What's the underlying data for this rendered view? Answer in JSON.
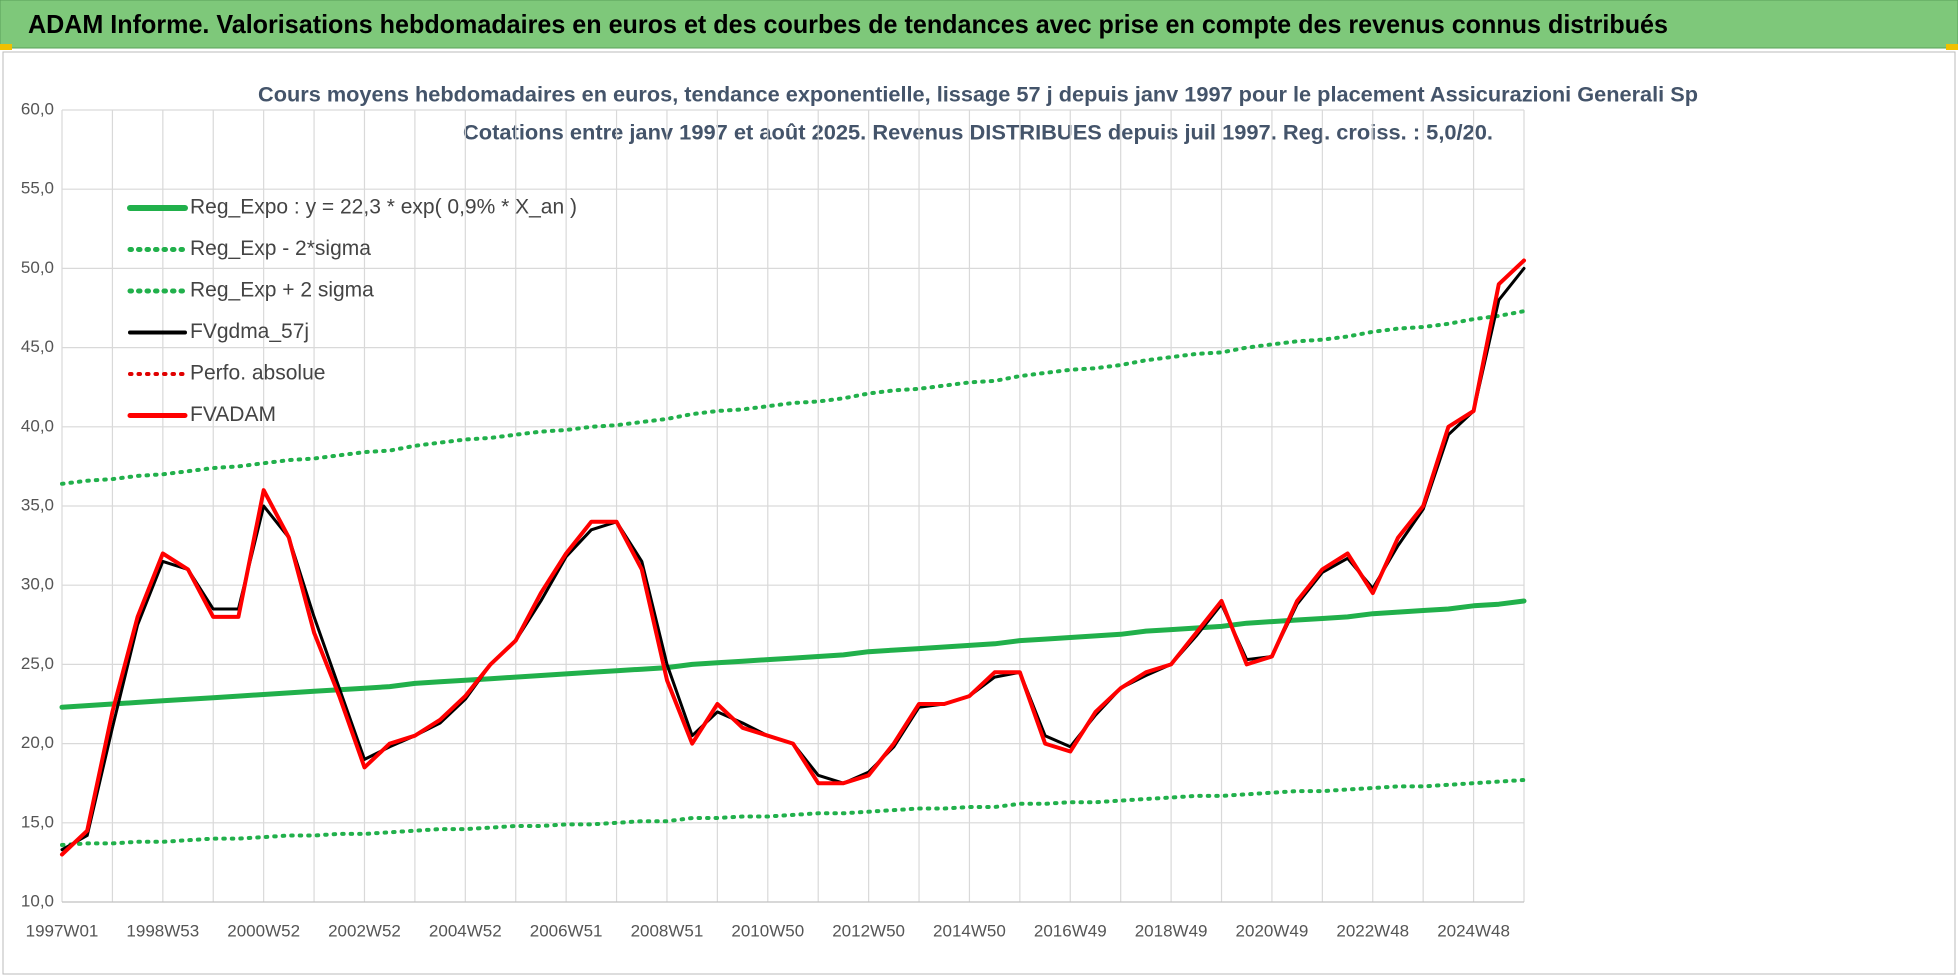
{
  "header": {
    "title": "ADAM Informe. Valorisations hebdomadaires en euros et des courbes de tendances avec prise en compte des revenus connus distribués"
  },
  "chart_data": {
    "type": "line",
    "title": "Cours moyens hebdomadaires en euros, tendance exponentielle, lissage 57 j depuis janv 1997 pour le placement Assicurazioni Generali Sp",
    "subtitle": "Cotations entre janv 1997 et août 2025. Revenus DISTRIBUES depuis juil 1997. Reg. croiss. : 5,0/20.",
    "categories": [
      "1997W01",
      null,
      null,
      null,
      "1998W53",
      null,
      null,
      null,
      "2000W52",
      null,
      null,
      null,
      "2002W52",
      null,
      null,
      null,
      "2004W52",
      null,
      null,
      null,
      "2006W51",
      null,
      null,
      null,
      "2008W51",
      null,
      null,
      null,
      "2010W50",
      null,
      null,
      null,
      "2012W50",
      null,
      null,
      null,
      "2014W50",
      null,
      null,
      null,
      "2016W49",
      null,
      null,
      null,
      "2018W49",
      null,
      null,
      null,
      "2020W49",
      null,
      null,
      null,
      "2022W48",
      null,
      null,
      null,
      "2024W48",
      null,
      null
    ],
    "ylim": [
      10,
      60
    ],
    "yticks": [
      {
        "value": 10,
        "label": "10,0"
      },
      {
        "value": 15,
        "label": "15,0"
      },
      {
        "value": 20,
        "label": "20,0"
      },
      {
        "value": 25,
        "label": "25,0"
      },
      {
        "value": 30,
        "label": "30,0"
      },
      {
        "value": 35,
        "label": "35,0"
      },
      {
        "value": 40,
        "label": "40,0"
      },
      {
        "value": 45,
        "label": "45,0"
      },
      {
        "value": 50,
        "label": "50,0"
      },
      {
        "value": 55,
        "label": "55,0"
      },
      {
        "value": 60,
        "label": "60,0"
      }
    ],
    "grid": true,
    "legend": "top-left",
    "series": [
      {
        "name": "Reg_Expo : y = 22,3 * exp( 0,9% *  X_an )",
        "color": "#21b04b",
        "style": "solid",
        "width": 5,
        "values": [
          22.3,
          22.4,
          22.5,
          22.6,
          22.7,
          22.8,
          22.9,
          23.0,
          23.1,
          23.2,
          23.3,
          23.4,
          23.5,
          23.6,
          23.8,
          23.9,
          24.0,
          24.1,
          24.2,
          24.3,
          24.4,
          24.5,
          24.6,
          24.7,
          24.8,
          25.0,
          25.1,
          25.2,
          25.3,
          25.4,
          25.5,
          25.6,
          25.8,
          25.9,
          26.0,
          26.1,
          26.2,
          26.3,
          26.5,
          26.6,
          26.7,
          26.8,
          26.9,
          27.1,
          27.2,
          27.3,
          27.4,
          27.6,
          27.7,
          27.8,
          27.9,
          28.0,
          28.2,
          28.3,
          28.4,
          28.5,
          28.7,
          28.8,
          29.0
        ]
      },
      {
        "name": "Reg_Exp - 2*sigma",
        "color": "#21b04b",
        "style": "dotted",
        "width": 4,
        "values": [
          13.6,
          13.7,
          13.7,
          13.8,
          13.8,
          13.9,
          14.0,
          14.0,
          14.1,
          14.2,
          14.2,
          14.3,
          14.3,
          14.4,
          14.5,
          14.6,
          14.6,
          14.7,
          14.8,
          14.8,
          14.9,
          14.9,
          15.0,
          15.1,
          15.1,
          15.3,
          15.3,
          15.4,
          15.4,
          15.5,
          15.6,
          15.6,
          15.7,
          15.8,
          15.9,
          15.9,
          16.0,
          16.0,
          16.2,
          16.2,
          16.3,
          16.3,
          16.4,
          16.5,
          16.6,
          16.7,
          16.7,
          16.8,
          16.9,
          17.0,
          17.0,
          17.1,
          17.2,
          17.3,
          17.3,
          17.4,
          17.5,
          17.6,
          17.7
        ]
      },
      {
        "name": "Reg_Exp + 2 sigma",
        "color": "#21b04b",
        "style": "dotted",
        "width": 4,
        "values": [
          36.4,
          36.6,
          36.7,
          36.9,
          37.0,
          37.2,
          37.4,
          37.5,
          37.7,
          37.9,
          38.0,
          38.2,
          38.4,
          38.5,
          38.8,
          39.0,
          39.2,
          39.3,
          39.5,
          39.7,
          39.8,
          40.0,
          40.1,
          40.3,
          40.5,
          40.8,
          41.0,
          41.1,
          41.3,
          41.5,
          41.6,
          41.8,
          42.1,
          42.3,
          42.4,
          42.6,
          42.8,
          42.9,
          43.2,
          43.4,
          43.6,
          43.7,
          43.9,
          44.2,
          44.4,
          44.6,
          44.7,
          45.0,
          45.2,
          45.4,
          45.5,
          45.7,
          46.0,
          46.2,
          46.3,
          46.5,
          46.8,
          47.0,
          47.3
        ]
      },
      {
        "name": "FVgdma_57j",
        "color": "#000000",
        "style": "solid",
        "width": 3,
        "values": [
          13.3,
          14.2,
          21,
          27.5,
          31.5,
          31,
          28.5,
          28.5,
          35,
          33,
          28,
          23.5,
          19,
          19.8,
          20.5,
          21.3,
          22.8,
          25,
          26.5,
          29,
          31.8,
          33.5,
          34,
          31.5,
          25,
          20.5,
          22,
          21.3,
          20.5,
          20,
          18,
          17.5,
          18.2,
          19.8,
          22.3,
          22.5,
          23,
          24.2,
          24.5,
          20.5,
          19.8,
          21.8,
          23.5,
          24.3,
          25,
          26.8,
          28.8,
          25.3,
          25.5,
          28.8,
          30.8,
          31.7,
          29.8,
          32.5,
          34.8,
          39.5,
          41,
          48,
          50
        ]
      },
      {
        "name": "Perfo. absolue",
        "color": "#e00000",
        "style": "dotted",
        "width": 3,
        "values": [
          13,
          14.5,
          22,
          28,
          32,
          31,
          28,
          28,
          36,
          33,
          27,
          23,
          18.5,
          20,
          20.5,
          21.5,
          23,
          25,
          26.5,
          29.5,
          32,
          34,
          34,
          31,
          24,
          20,
          22.5,
          21,
          20.5,
          20,
          17.5,
          17.5,
          18,
          20,
          22.5,
          22.5,
          23,
          24.5,
          24.5,
          20,
          19.5,
          22,
          23.5,
          24.5,
          25,
          27,
          29,
          25,
          25.5,
          29,
          31,
          32,
          29.5,
          33,
          35,
          40,
          41,
          49,
          50.5
        ]
      },
      {
        "name": "FVADAM",
        "color": "#ff0000",
        "style": "solid",
        "width": 4,
        "values": [
          13,
          14.5,
          22,
          28,
          32,
          31,
          28,
          28,
          36,
          33,
          27,
          23,
          18.5,
          20,
          20.5,
          21.5,
          23,
          25,
          26.5,
          29.5,
          32,
          34,
          34,
          31,
          24,
          20,
          22.5,
          21,
          20.5,
          20,
          17.5,
          17.5,
          18,
          20,
          22.5,
          22.5,
          23,
          24.5,
          24.5,
          20,
          19.5,
          22,
          23.5,
          24.5,
          25,
          27,
          29,
          25,
          25.5,
          29,
          31,
          32,
          29.5,
          33,
          35,
          40,
          41,
          49,
          50.5
        ]
      }
    ]
  }
}
